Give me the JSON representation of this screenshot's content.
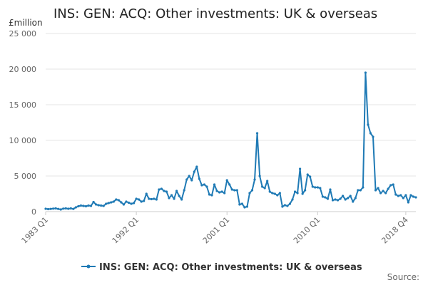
{
  "colors": {
    "series": "#1f7ab5",
    "grid": "#e6e6e6",
    "axis": "#cccccc"
  },
  "chart_data": {
    "type": "line",
    "title": "INS: GEN: ACQ: Other investments: UK & overseas",
    "unit_label": "£million",
    "source_label": "Source:",
    "xlabel": "",
    "ylabel": "",
    "ylim": [
      0,
      25000
    ],
    "y_ticks": [
      0,
      5000,
      10000,
      15000,
      20000,
      25000
    ],
    "y_tick_labels": [
      "0",
      "5 000",
      "10 000",
      "15 000",
      "20 000",
      "25 000"
    ],
    "x_tick_labels": [
      {
        "index": 0,
        "label": "1983 Q1"
      },
      {
        "index": 36,
        "label": "1992 Q1"
      },
      {
        "index": 72,
        "label": "2001 Q1"
      },
      {
        "index": 108,
        "label": "2010 Q1"
      },
      {
        "index": 143,
        "label": "2018 Q4"
      }
    ],
    "grid": true,
    "legend_position": "bottom",
    "series": [
      {
        "name": "INS: GEN: ACQ: Other investments: UK & overseas",
        "values": [
          400,
          350,
          380,
          420,
          450,
          380,
          300,
          420,
          450,
          400,
          450,
          380,
          600,
          750,
          850,
          800,
          750,
          850,
          800,
          1350,
          1000,
          900,
          850,
          800,
          1100,
          1200,
          1300,
          1400,
          1700,
          1600,
          1300,
          1000,
          1400,
          1250,
          1100,
          1200,
          1800,
          1700,
          1400,
          1500,
          2500,
          1800,
          1750,
          1800,
          1700,
          3100,
          3200,
          2900,
          2800,
          1900,
          2300,
          1800,
          2900,
          2200,
          1700,
          3000,
          4500,
          5000,
          4400,
          5600,
          6300,
          4600,
          3700,
          3800,
          3500,
          2400,
          2300,
          3800,
          2900,
          2700,
          2800,
          2600,
          4400,
          3800,
          3100,
          3000,
          3000,
          1000,
          1100,
          600,
          700,
          2600,
          3000,
          4500,
          11000,
          5000,
          3500,
          3300,
          4300,
          2800,
          2600,
          2500,
          2300,
          2600,
          700,
          900,
          800,
          1100,
          1700,
          2800,
          2600,
          6000,
          2500,
          3000,
          5200,
          4900,
          3500,
          3400,
          3400,
          3300,
          2100,
          2000,
          1800,
          3100,
          1600,
          1700,
          1600,
          1800,
          2200,
          1700,
          1900,
          2200,
          1400,
          1900,
          3000,
          3000,
          3400,
          19500,
          12200,
          11000,
          10500,
          3000,
          3300,
          2600,
          2900,
          2600,
          3200,
          3700,
          3800,
          2400,
          2200,
          2300,
          1900,
          2300,
          1300,
          2300,
          2100,
          2000
        ]
      }
    ]
  }
}
